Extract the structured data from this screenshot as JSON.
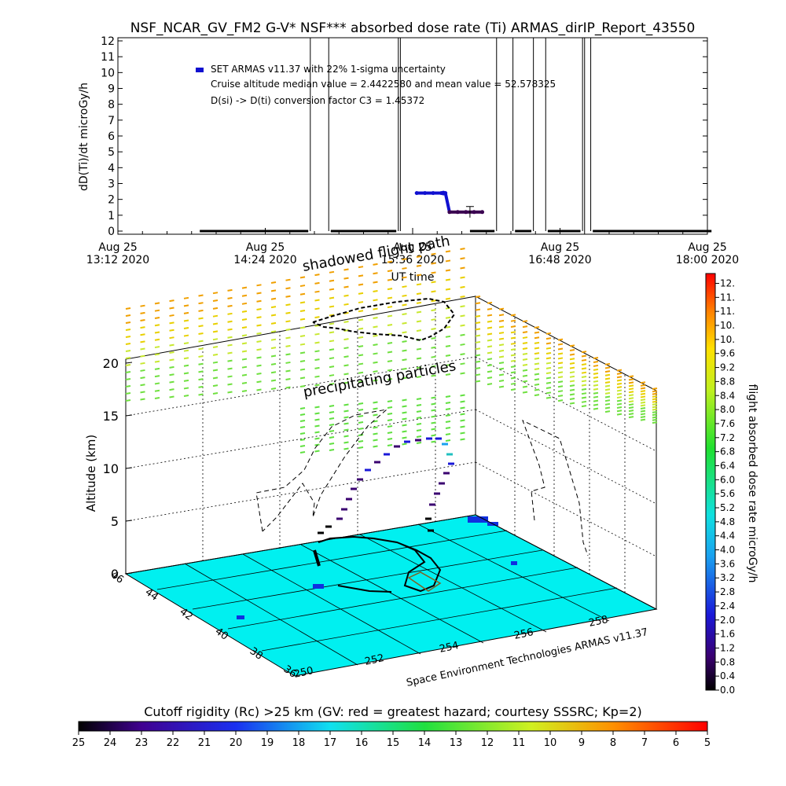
{
  "figure_title": "NSF_NCAR_GV_FM2 G-V* NSF*** absorbed dose rate (Ti) ARMAS_dirIP_Report_43550",
  "chart_data": [
    {
      "type": "line",
      "panel": "time-series",
      "title": "NSF_NCAR_GV_FM2 G-V* NSF*** absorbed dose rate (Ti) ARMAS_dirIP_Report_43550",
      "xlabel": "UT time",
      "ylabel": "dD(Ti)/dt microGy/h",
      "ylim": [
        0,
        12
      ],
      "yticks": [
        "0",
        "1",
        "2",
        "3",
        "4",
        "5",
        "6",
        "7",
        "8",
        "9",
        "10",
        "11",
        "12"
      ],
      "xticks": [
        {
          "line1": "Aug 25",
          "line2": "13:12 2020",
          "min": 0
        },
        {
          "line1": "Aug 25",
          "line2": "14:24 2020",
          "min": 72
        },
        {
          "line1": "Aug 25",
          "line2": "15:36 2020",
          "min": 144
        },
        {
          "line1": "Aug 25",
          "line2": "16:48 2020",
          "min": 216
        },
        {
          "line1": "Aug 25",
          "line2": "18:00 2020",
          "min": 288
        }
      ],
      "xlim_min": [
        0,
        288
      ],
      "annotations": [
        "SET ARMAS v11.37 with 22% 1-sigma uncertainty",
        "Cruise altitude median value = 2.4422580 and mean value = 52.578325",
        "D(si) -> D(ti) conversion factor C3 = 1.45372"
      ],
      "series": [
        {
          "name": "SET ARMAS v11.37 with 22% 1-sigma uncertainty",
          "color": "#1010d0",
          "points_min_value": [
            [
              146,
              2.4
            ],
            [
              150,
              2.4
            ],
            [
              154,
              2.4
            ],
            [
              158,
              2.4
            ],
            [
              160,
              2.4
            ],
            [
              162,
              1.2
            ],
            [
              166,
              1.2
            ],
            [
              170,
              1.2
            ],
            [
              174,
              1.2
            ],
            [
              178,
              1.2
            ]
          ]
        },
        {
          "name": "baseline segments",
          "color": "#000000",
          "segments_min": [
            [
              40,
              93
            ],
            [
              104,
              136
            ],
            [
              172,
              184
            ],
            [
              194,
              202
            ],
            [
              210,
              226
            ],
            [
              232,
              290
            ]
          ]
        },
        {
          "name": "spikes",
          "color": "#000000",
          "vertical_lines_min": [
            94,
            103,
            137,
            138,
            185,
            193,
            203,
            209,
            227,
            228,
            231
          ]
        }
      ]
    },
    {
      "type": "scatter",
      "panel": "3d flight path over cutoff rigidity map",
      "zlabel": "Altitude (km)",
      "zticks": [
        "0",
        "5",
        "10",
        "15",
        "20"
      ],
      "zlim": [
        0,
        20
      ],
      "x_ticks": [
        "250",
        "252",
        "254",
        "256",
        "258"
      ],
      "y_ticks": [
        "36",
        "38",
        "40",
        "42",
        "44",
        "46"
      ],
      "annotations": [
        "shadowed flight path",
        "precipitating particles"
      ],
      "credit": "Space Environment Technologies ARMAS v11.37",
      "colorbar": {
        "label": "flight absorbed dose rate microGy/h",
        "ticks": [
          "0.0",
          "0.4",
          "0.8",
          "1.2",
          "1.6",
          "2.0",
          "2.4",
          "2.8",
          "3.2",
          "3.6",
          "4.0",
          "4.4",
          "4.8",
          "5.2",
          "5.6",
          "6.0",
          "6.4",
          "6.8",
          "7.2",
          "7.6",
          "8.0",
          "8.4",
          "8.8",
          "9.2",
          "9.6",
          "10.",
          "10.",
          "11.",
          "11.",
          "12."
        ]
      },
      "map_fill_color": "#00f0f0"
    },
    {
      "type": "heatmap",
      "panel": "cutoff rigidity colorbar",
      "title": "Cutoff rigidity (Rc) >25 km (GV: red = greatest hazard; courtesy SSSRC; Kp=2)",
      "ticks": [
        "25",
        "24",
        "23",
        "22",
        "21",
        "20",
        "19",
        "18",
        "17",
        "16",
        "15",
        "14",
        "13",
        "12",
        "11",
        "10",
        "9",
        "8",
        "7",
        "6",
        "5"
      ]
    }
  ]
}
